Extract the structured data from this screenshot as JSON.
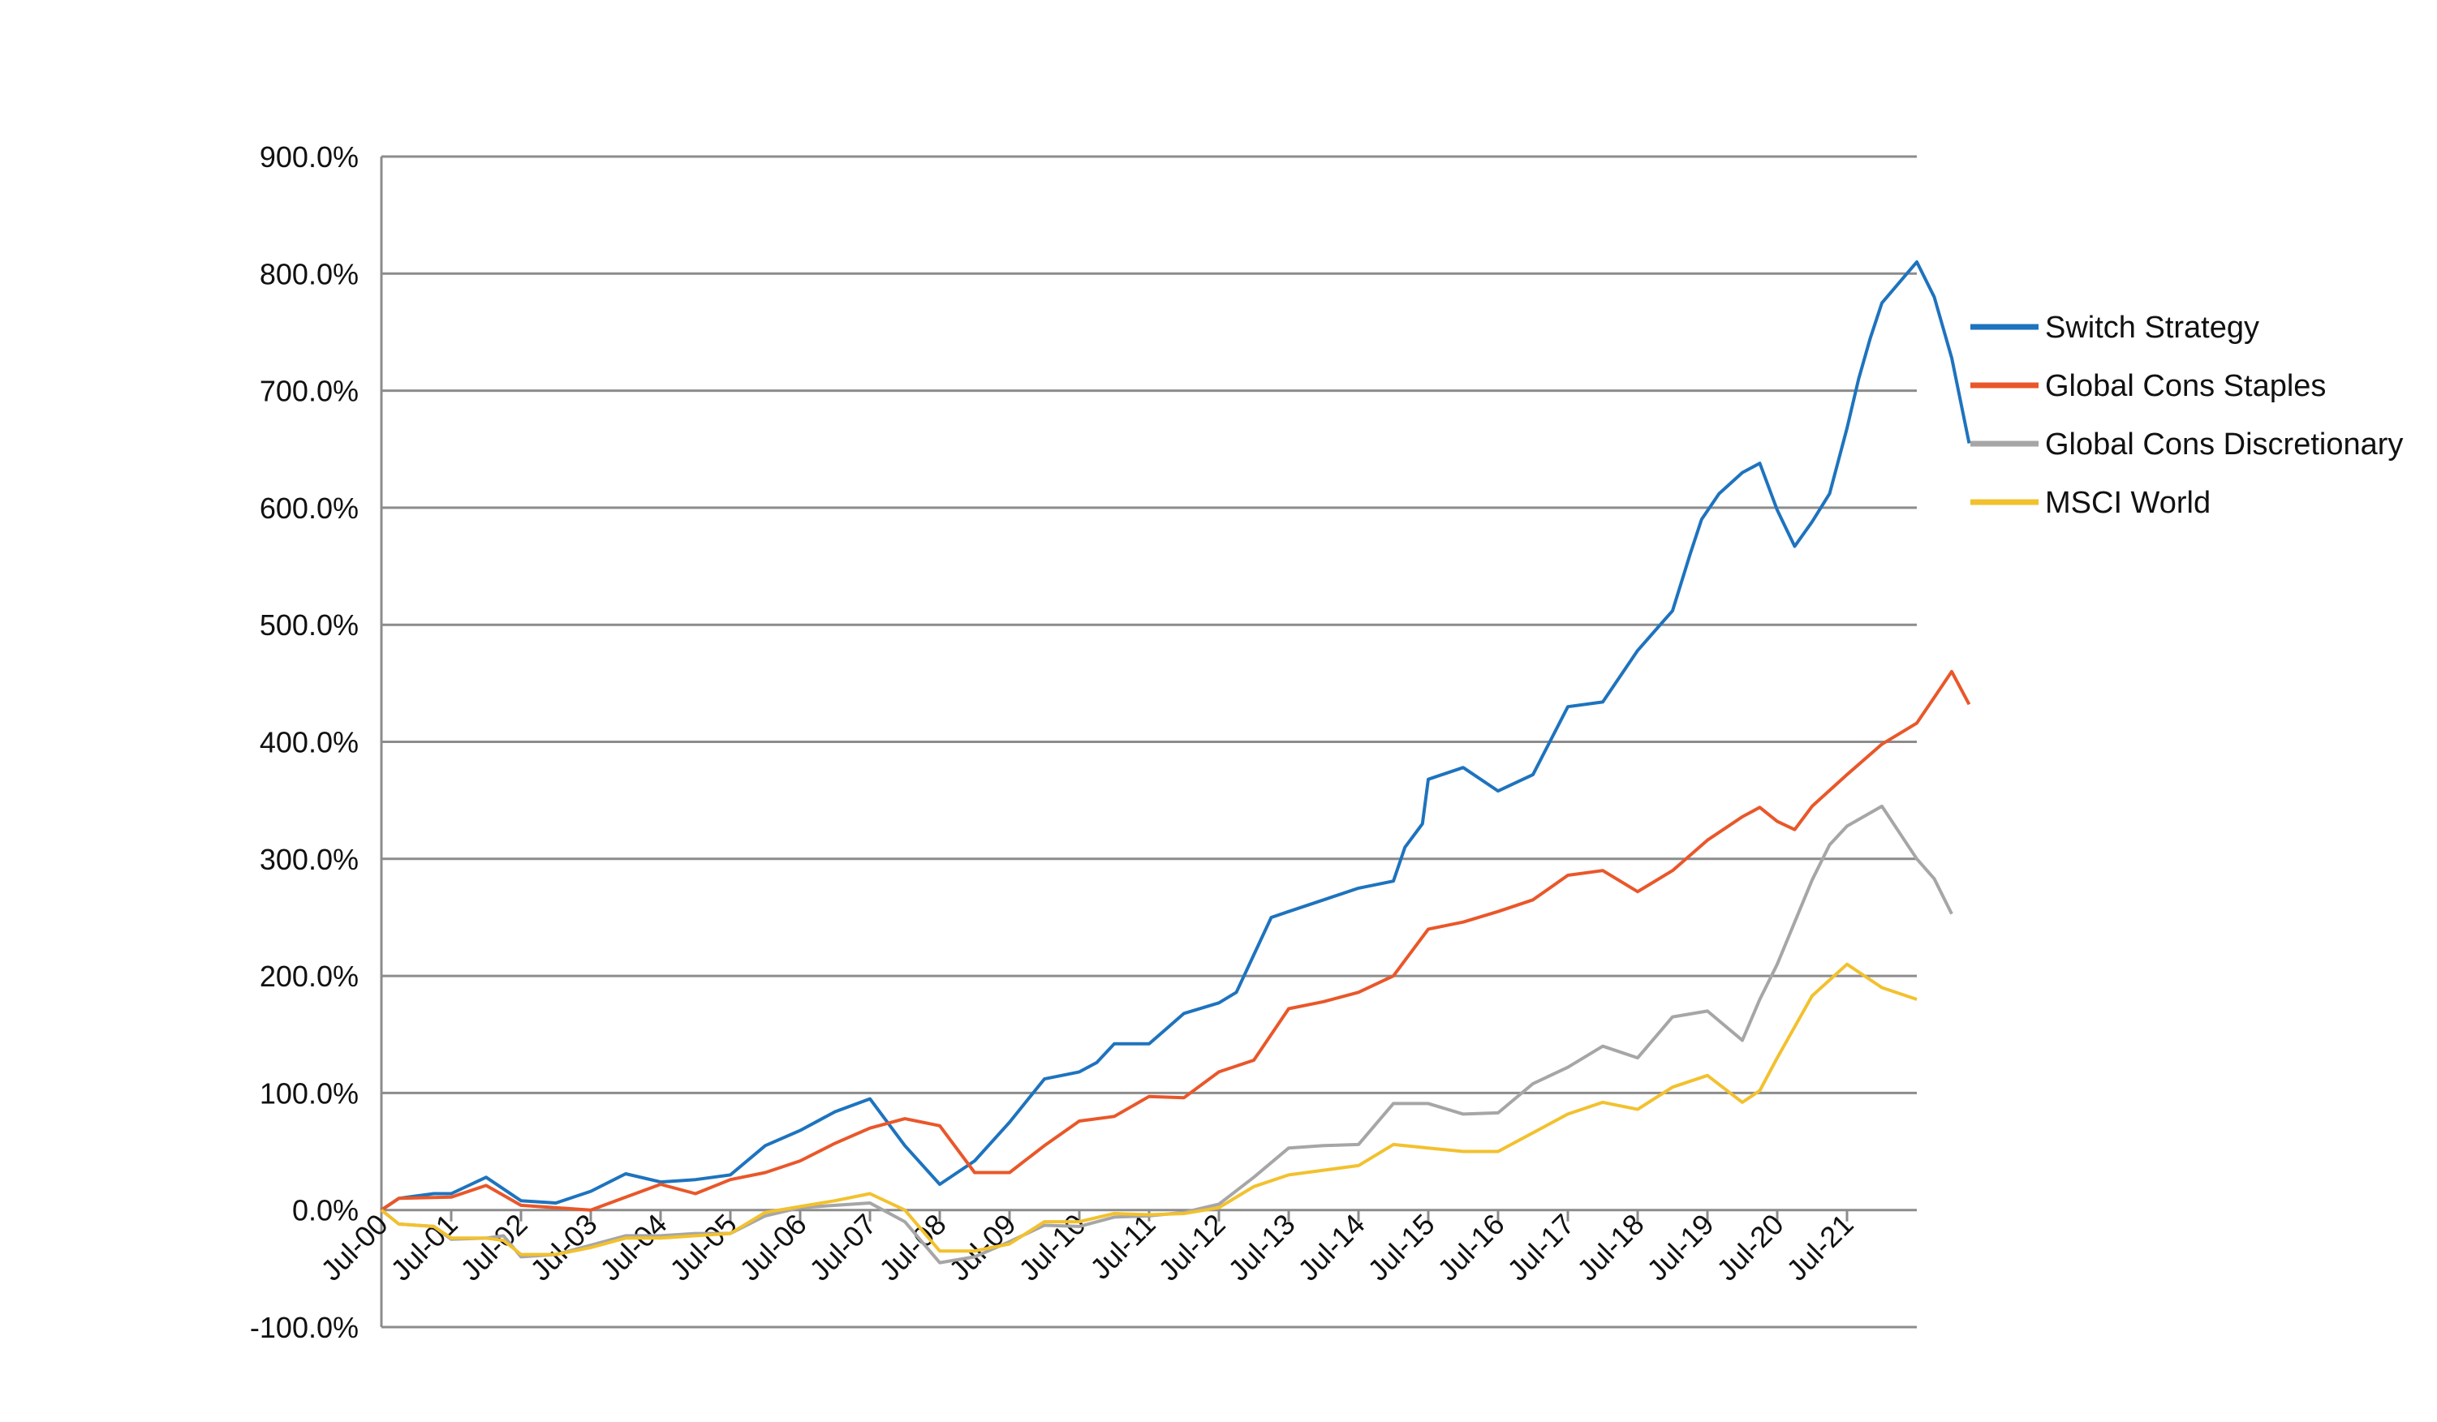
{
  "chart_data": {
    "type": "line",
    "title": "",
    "xlabel": "",
    "ylabel": "",
    "y_format": "percent_1dp",
    "ylim": [
      -100,
      900
    ],
    "y_ticks": [
      900,
      800,
      700,
      600,
      500,
      400,
      300,
      200,
      100,
      0,
      -100
    ],
    "y_tick_labels": [
      "900.0%",
      "800.0%",
      "700.0%",
      "600.0%",
      "500.0%",
      "400.0%",
      "300.0%",
      "200.0%",
      "100.0%",
      "0.0%",
      "-100.0%"
    ],
    "xlim": [
      "2000-07",
      "2022-07"
    ],
    "x_ticks": [
      "2000-07",
      "2001-07",
      "2002-07",
      "2003-07",
      "2004-07",
      "2005-07",
      "2006-07",
      "2007-07",
      "2008-07",
      "2009-07",
      "2010-07",
      "2011-07",
      "2012-07",
      "2013-07",
      "2014-07",
      "2015-07",
      "2016-07",
      "2017-07",
      "2018-07",
      "2019-07",
      "2020-07",
      "2021-07"
    ],
    "x_tick_labels": [
      "Jul-00",
      "Jul-01",
      "Jul-02",
      "Jul-03",
      "Jul-04",
      "Jul-05",
      "Jul-06",
      "Jul-07",
      "Jul-08",
      "Jul-09",
      "Jul-10",
      "Jul-11",
      "Jul-12",
      "Jul-13",
      "Jul-14",
      "Jul-15",
      "Jul-16",
      "Jul-17",
      "Jul-18",
      "Jul-19",
      "Jul-20",
      "Jul-21"
    ],
    "grid": "horizontal",
    "legend_position": "right",
    "series": [
      {
        "name": "Switch Strategy",
        "color": "#1E73BE",
        "points": [
          [
            "2000-07",
            0
          ],
          [
            "2000-10",
            10
          ],
          [
            "2001-04",
            14
          ],
          [
            "2001-07",
            14
          ],
          [
            "2002-01",
            28
          ],
          [
            "2002-07",
            8
          ],
          [
            "2003-01",
            6
          ],
          [
            "2003-07",
            16
          ],
          [
            "2004-01",
            31
          ],
          [
            "2004-07",
            24
          ],
          [
            "2005-01",
            26
          ],
          [
            "2005-07",
            30
          ],
          [
            "2006-01",
            55
          ],
          [
            "2006-07",
            68
          ],
          [
            "2007-01",
            84
          ],
          [
            "2007-07",
            95
          ],
          [
            "2008-01",
            55
          ],
          [
            "2008-07",
            22
          ],
          [
            "2009-01",
            42
          ],
          [
            "2009-07",
            75
          ],
          [
            "2010-01",
            112
          ],
          [
            "2010-07",
            118
          ],
          [
            "2010-10",
            126
          ],
          [
            "2011-01",
            142
          ],
          [
            "2011-07",
            142
          ],
          [
            "2012-01",
            168
          ],
          [
            "2012-07",
            177
          ],
          [
            "2012-10",
            186
          ],
          [
            "2013-01",
            218
          ],
          [
            "2013-04",
            250
          ],
          [
            "2013-07",
            255
          ],
          [
            "2014-01",
            265
          ],
          [
            "2014-07",
            275
          ],
          [
            "2015-01",
            281
          ],
          [
            "2015-03",
            310
          ],
          [
            "2015-06",
            330
          ],
          [
            "2015-07",
            368
          ],
          [
            "2016-01",
            378
          ],
          [
            "2016-07",
            358
          ],
          [
            "2017-01",
            372
          ],
          [
            "2017-07",
            430
          ],
          [
            "2018-01",
            434
          ],
          [
            "2018-07",
            478
          ],
          [
            "2019-01",
            512
          ],
          [
            "2019-04",
            560
          ],
          [
            "2019-06",
            590
          ],
          [
            "2019-09",
            612
          ],
          [
            "2020-01",
            630
          ],
          [
            "2020-04",
            638
          ],
          [
            "2020-07",
            598
          ],
          [
            "2020-10",
            567
          ],
          [
            "2021-01",
            588
          ],
          [
            "2021-04",
            612
          ],
          [
            "2021-07",
            668
          ],
          [
            "2021-09",
            710
          ],
          [
            "2021-11",
            745
          ],
          [
            "2022-01",
            775
          ],
          [
            "2022-07",
            810
          ],
          [
            "2022-10",
            780
          ],
          [
            "2023-01",
            728
          ],
          [
            "2023-04",
            655
          ]
        ]
      },
      {
        "name": "Global Cons Staples",
        "color": "#E9572A",
        "points": [
          [
            "2000-07",
            0
          ],
          [
            "2000-10",
            10
          ],
          [
            "2001-07",
            11
          ],
          [
            "2002-01",
            21
          ],
          [
            "2002-07",
            4
          ],
          [
            "2003-07",
            0
          ],
          [
            "2004-07",
            22
          ],
          [
            "2005-01",
            14
          ],
          [
            "2005-07",
            26
          ],
          [
            "2006-01",
            32
          ],
          [
            "2006-07",
            42
          ],
          [
            "2007-01",
            57
          ],
          [
            "2007-07",
            70
          ],
          [
            "2008-01",
            78
          ],
          [
            "2008-07",
            72
          ],
          [
            "2009-01",
            32
          ],
          [
            "2009-07",
            32
          ],
          [
            "2010-01",
            55
          ],
          [
            "2010-07",
            76
          ],
          [
            "2011-01",
            80
          ],
          [
            "2011-07",
            97
          ],
          [
            "2012-01",
            96
          ],
          [
            "2012-07",
            118
          ],
          [
            "2013-01",
            128
          ],
          [
            "2013-07",
            172
          ],
          [
            "2014-01",
            178
          ],
          [
            "2014-07",
            186
          ],
          [
            "2015-01",
            200
          ],
          [
            "2015-07",
            240
          ],
          [
            "2016-01",
            246
          ],
          [
            "2016-07",
            255
          ],
          [
            "2017-01",
            265
          ],
          [
            "2017-07",
            286
          ],
          [
            "2018-01",
            290
          ],
          [
            "2018-07",
            272
          ],
          [
            "2019-01",
            290
          ],
          [
            "2019-07",
            316
          ],
          [
            "2020-01",
            336
          ],
          [
            "2020-04",
            344
          ],
          [
            "2020-07",
            332
          ],
          [
            "2020-10",
            325
          ],
          [
            "2021-01",
            345
          ],
          [
            "2021-07",
            372
          ],
          [
            "2022-01",
            398
          ],
          [
            "2022-07",
            416
          ],
          [
            "2022-10",
            438
          ],
          [
            "2023-01",
            460
          ],
          [
            "2023-04",
            432
          ]
        ]
      },
      {
        "name": "Global Cons Discretionary",
        "color": "#A6A6A6",
        "points": [
          [
            "2000-07",
            0
          ],
          [
            "2000-10",
            -12
          ],
          [
            "2001-04",
            -14
          ],
          [
            "2001-07",
            -25
          ],
          [
            "2002-01",
            -24
          ],
          [
            "2002-04",
            -22
          ],
          [
            "2002-07",
            -40
          ],
          [
            "2003-01",
            -38
          ],
          [
            "2003-07",
            -30
          ],
          [
            "2004-01",
            -22
          ],
          [
            "2004-07",
            -22
          ],
          [
            "2005-01",
            -20
          ],
          [
            "2005-07",
            -20
          ],
          [
            "2006-01",
            -5
          ],
          [
            "2006-07",
            2
          ],
          [
            "2007-01",
            4
          ],
          [
            "2007-07",
            6
          ],
          [
            "2008-01",
            -10
          ],
          [
            "2008-07",
            -45
          ],
          [
            "2009-01",
            -40
          ],
          [
            "2009-07",
            -27
          ],
          [
            "2010-01",
            -13
          ],
          [
            "2010-07",
            -14
          ],
          [
            "2011-01",
            -6
          ],
          [
            "2011-07",
            -5
          ],
          [
            "2012-01",
            -2
          ],
          [
            "2012-07",
            5
          ],
          [
            "2013-01",
            28
          ],
          [
            "2013-07",
            53
          ],
          [
            "2014-01",
            55
          ],
          [
            "2014-07",
            56
          ],
          [
            "2015-01",
            91
          ],
          [
            "2015-07",
            91
          ],
          [
            "2016-01",
            82
          ],
          [
            "2016-07",
            83
          ],
          [
            "2017-01",
            108
          ],
          [
            "2017-07",
            122
          ],
          [
            "2018-01",
            140
          ],
          [
            "2018-07",
            130
          ],
          [
            "2019-01",
            165
          ],
          [
            "2019-07",
            170
          ],
          [
            "2020-01",
            145
          ],
          [
            "2020-04",
            180
          ],
          [
            "2020-07",
            210
          ],
          [
            "2021-01",
            282
          ],
          [
            "2021-04",
            312
          ],
          [
            "2021-07",
            328
          ],
          [
            "2022-01",
            345
          ],
          [
            "2022-07",
            300
          ],
          [
            "2022-10",
            283
          ],
          [
            "2023-01",
            253
          ]
        ]
      },
      {
        "name": "MSCI World",
        "color": "#F2C12E",
        "points": [
          [
            "2000-07",
            0
          ],
          [
            "2000-10",
            -12
          ],
          [
            "2001-04",
            -14
          ],
          [
            "2001-07",
            -24
          ],
          [
            "2002-01",
            -24
          ],
          [
            "2002-04",
            -26
          ],
          [
            "2002-07",
            -38
          ],
          [
            "2003-01",
            -38
          ],
          [
            "2003-07",
            -32
          ],
          [
            "2004-01",
            -24
          ],
          [
            "2004-07",
            -24
          ],
          [
            "2005-01",
            -22
          ],
          [
            "2005-07",
            -20
          ],
          [
            "2006-01",
            -2
          ],
          [
            "2006-07",
            3
          ],
          [
            "2007-01",
            8
          ],
          [
            "2007-07",
            14
          ],
          [
            "2008-01",
            0
          ],
          [
            "2008-07",
            -35
          ],
          [
            "2009-01",
            -35
          ],
          [
            "2009-07",
            -29
          ],
          [
            "2010-01",
            -10
          ],
          [
            "2010-07",
            -10
          ],
          [
            "2011-01",
            -3
          ],
          [
            "2011-07",
            -4
          ],
          [
            "2012-01",
            -3
          ],
          [
            "2012-07",
            2
          ],
          [
            "2013-01",
            20
          ],
          [
            "2013-07",
            30
          ],
          [
            "2014-01",
            34
          ],
          [
            "2014-07",
            38
          ],
          [
            "2015-01",
            56
          ],
          [
            "2015-07",
            53
          ],
          [
            "2016-01",
            50
          ],
          [
            "2016-07",
            50
          ],
          [
            "2017-01",
            66
          ],
          [
            "2017-07",
            82
          ],
          [
            "2018-01",
            92
          ],
          [
            "2018-07",
            86
          ],
          [
            "2019-01",
            105
          ],
          [
            "2019-07",
            115
          ],
          [
            "2020-01",
            92
          ],
          [
            "2020-04",
            102
          ],
          [
            "2020-07",
            130
          ],
          [
            "2021-01",
            183
          ],
          [
            "2021-07",
            210
          ],
          [
            "2022-01",
            190
          ],
          [
            "2022-07",
            180
          ]
        ]
      }
    ]
  }
}
